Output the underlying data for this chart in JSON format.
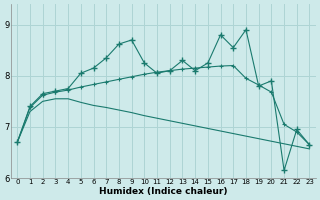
{
  "xlabel": "Humidex (Indice chaleur)",
  "bg_color": "#ceeaea",
  "line_color": "#1a7a6e",
  "grid_color": "#aed4d4",
  "xlim": [
    -0.5,
    23.5
  ],
  "ylim": [
    6.0,
    9.4
  ],
  "yticks": [
    6,
    7,
    8,
    9
  ],
  "xticks": [
    0,
    1,
    2,
    3,
    4,
    5,
    6,
    7,
    8,
    9,
    10,
    11,
    12,
    13,
    14,
    15,
    16,
    17,
    18,
    19,
    20,
    21,
    22,
    23
  ],
  "x": [
    0,
    1,
    2,
    3,
    4,
    5,
    6,
    7,
    8,
    9,
    10,
    11,
    12,
    13,
    14,
    15,
    16,
    17,
    18,
    19,
    20,
    21,
    22,
    23
  ],
  "y_jagged": [
    6.7,
    7.4,
    7.65,
    7.7,
    7.75,
    8.05,
    8.15,
    8.35,
    8.62,
    8.7,
    8.25,
    8.05,
    8.1,
    8.3,
    8.1,
    8.25,
    8.8,
    8.55,
    8.9,
    7.8,
    7.9,
    6.15,
    6.95,
    6.65
  ],
  "y_upper": [
    6.7,
    7.38,
    7.62,
    7.68,
    7.72,
    7.78,
    7.83,
    7.88,
    7.93,
    7.98,
    8.03,
    8.07,
    8.1,
    8.13,
    8.15,
    8.17,
    8.19,
    8.2,
    7.95,
    7.82,
    7.68,
    7.05,
    6.9,
    6.65
  ],
  "y_lower": [
    6.7,
    7.3,
    7.5,
    7.55,
    7.55,
    7.48,
    7.42,
    7.38,
    7.33,
    7.28,
    7.22,
    7.17,
    7.12,
    7.07,
    7.02,
    6.97,
    6.92,
    6.87,
    6.82,
    6.77,
    6.72,
    6.67,
    6.62,
    6.57
  ]
}
